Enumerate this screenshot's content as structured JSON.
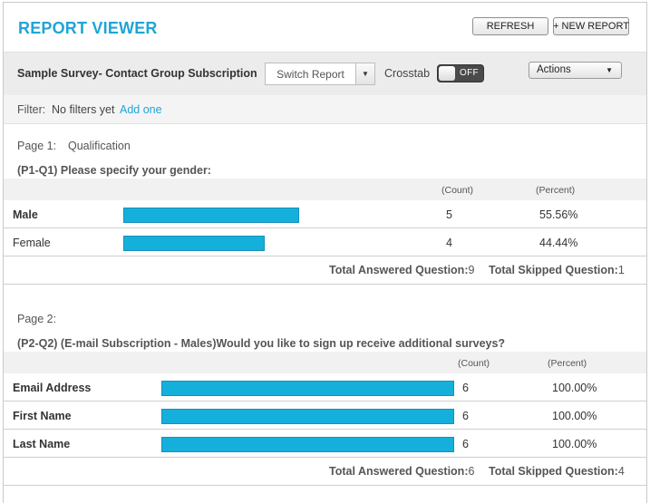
{
  "header": {
    "title": "REPORT VIEWER",
    "refresh_label": "REFRESH",
    "new_report_label": "+ NEW REPORT"
  },
  "toolbar": {
    "report_name": "Sample Survey- Contact Group Subscription",
    "switch_report_label": "Switch Report",
    "crosstab_label": "Crosstab",
    "crosstab_state": "OFF",
    "actions_label": "Actions"
  },
  "filter": {
    "label": "Filter:",
    "text": "No filters yet",
    "link": "Add one"
  },
  "sections": [
    {
      "page_label": "Page 1:",
      "page_name": "Qualification",
      "question": "(P1-Q1) Please specify your gender:",
      "count_header": "(Count)",
      "percent_header": "(Percent)",
      "rows": [
        {
          "label": "Male",
          "count": "5",
          "percent": "55.56%",
          "fraction": 0.5556
        },
        {
          "label": "Female",
          "count": "4",
          "percent": "44.44%",
          "fraction": 0.4444
        }
      ],
      "total_answered": "Total Answered Question:",
      "total_answered_value": "9",
      "total_skipped": "Total Skipped Question:",
      "total_skipped_value": "1"
    },
    {
      "page_label": "Page 2:",
      "page_name": "",
      "question": "(P2-Q2) (E-mail Subscription - Males)Would you like to sign up receive additional surveys?",
      "count_header": "(Count)",
      "percent_header": "(Percent)",
      "rows": [
        {
          "label": "Email Address",
          "count": "6",
          "percent": "100.00%",
          "fraction": 1.0
        },
        {
          "label": "First Name",
          "count": "6",
          "percent": "100.00%",
          "fraction": 1.0
        },
        {
          "label": "Last Name",
          "count": "6",
          "percent": "100.00%",
          "fraction": 1.0
        }
      ],
      "total_answered": "Total Answered Question:",
      "total_answered_value": "6",
      "total_skipped": "Total Skipped Question:",
      "total_skipped_value": "4"
    }
  ],
  "colors": {
    "accent": "#1fa5d6",
    "bar": "#14b0db"
  }
}
